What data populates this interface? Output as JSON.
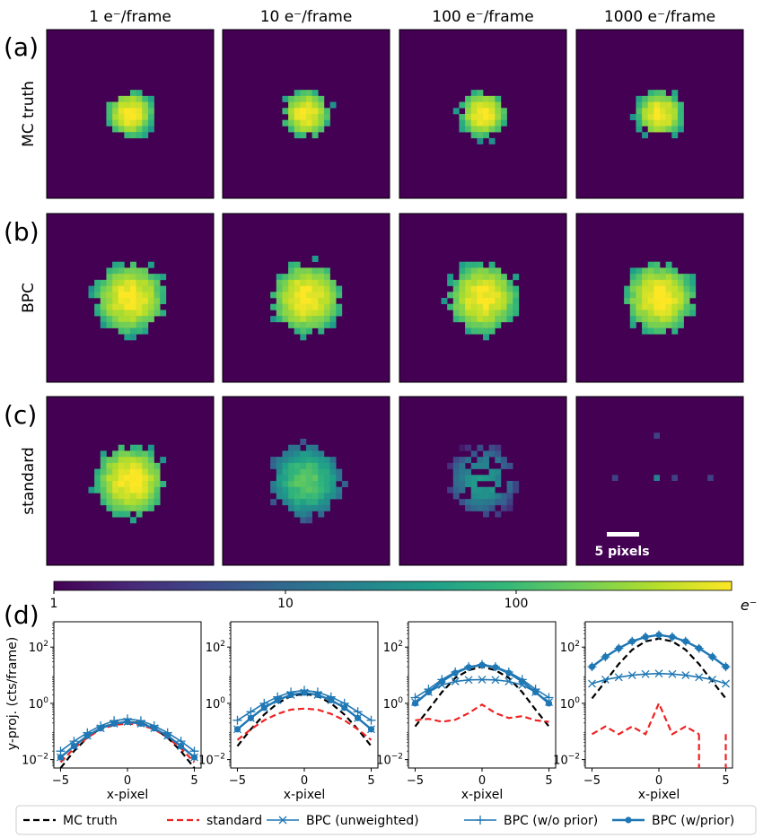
{
  "columns": [
    "1 e⁻/frame",
    "10 e⁻/frame",
    "100 e⁻/frame",
    "1000 e⁻/frame"
  ],
  "rows": [
    {
      "tag": "(a)",
      "label": "MC truth"
    },
    {
      "tag": "(b)",
      "label": "BPC"
    },
    {
      "tag": "(c)",
      "label": "standard"
    }
  ],
  "panel_d": {
    "tag": "(d)",
    "ylabel": "y-proj. (cts/frame)",
    "xlabel": "x-pixel",
    "yticks": [
      {
        "mant": "10",
        "exp": "2"
      },
      {
        "mant": "10",
        "exp": "0"
      },
      {
        "mant": "10",
        "exp": "−2"
      }
    ],
    "xticks": [
      "−5",
      "0",
      "5"
    ]
  },
  "scalebar": {
    "label": "5 pixels"
  },
  "colorbar": {
    "ticks": [
      "1",
      "10",
      "100"
    ],
    "unit": "e⁻",
    "colors": [
      "#440154",
      "#482878",
      "#3e4989",
      "#31688e",
      "#26828e",
      "#1f9e89",
      "#35b779",
      "#6ece58",
      "#b5de2b",
      "#fde725"
    ]
  },
  "colors": {
    "background": "#440154",
    "truth": "#000000",
    "standard": "#ee2222",
    "bpc": "#1f77b4"
  },
  "legend": [
    "MC truth",
    "standard",
    "BPC (unweighted)",
    "BPC (w/o prior)",
    "BPC (w/prior)"
  ],
  "chart_data": {
    "type": "line",
    "yscale": "log",
    "xlim": [
      -5.5,
      5.5
    ],
    "ylim_log10": [
      -2.3,
      2.9
    ],
    "x": [
      -5,
      -4,
      -3,
      -2,
      -1,
      0,
      1,
      2,
      3,
      4,
      5
    ],
    "images": {
      "peak_intensity": [
        [
          700,
          700,
          700,
          700
        ],
        [
          700,
          700,
          700,
          700
        ],
        [
          700,
          130,
          35,
          1
        ]
      ],
      "spot_radius_pixels": [
        [
          4,
          4,
          4,
          4
        ],
        [
          6,
          6,
          6,
          6
        ],
        [
          6,
          6,
          6,
          0
        ]
      ]
    },
    "panels": [
      {
        "flux": "1 e⁻/frame",
        "series": [
          {
            "name": "MC truth",
            "values": [
              0.005,
              0.02,
              0.06,
              0.13,
              0.2,
              0.22,
              0.2,
              0.13,
              0.06,
              0.02,
              0.005
            ]
          },
          {
            "name": "standard",
            "values": [
              0.008,
              0.025,
              0.06,
              0.12,
              0.17,
              0.19,
              0.17,
              0.12,
              0.06,
              0.025,
              0.008
            ]
          },
          {
            "name": "BPC (unweighted)",
            "values": [
              0.012,
              0.03,
              0.07,
              0.13,
              0.19,
              0.22,
              0.19,
              0.13,
              0.07,
              0.03,
              0.012
            ]
          },
          {
            "name": "BPC (w/o prior)",
            "values": [
              0.02,
              0.045,
              0.09,
              0.16,
              0.24,
              0.28,
              0.24,
              0.16,
              0.09,
              0.045,
              0.02
            ]
          },
          {
            "name": "BPC (w/prior)",
            "values": [
              0.012,
              0.03,
              0.07,
              0.13,
              0.19,
              0.22,
              0.19,
              0.13,
              0.07,
              0.03,
              0.012
            ]
          }
        ]
      },
      {
        "flux": "10 e⁻/frame",
        "series": [
          {
            "name": "MC truth",
            "values": [
              0.03,
              0.12,
              0.4,
              1.0,
              1.8,
              2.2,
              1.8,
              1.0,
              0.4,
              0.12,
              0.03
            ]
          },
          {
            "name": "standard",
            "values": [
              0.05,
              0.12,
              0.25,
              0.42,
              0.6,
              0.65,
              0.6,
              0.42,
              0.25,
              0.12,
              0.05
            ]
          },
          {
            "name": "BPC (unweighted)",
            "values": [
              0.12,
              0.3,
              0.7,
              1.3,
              2.0,
              2.4,
              2.0,
              1.3,
              0.7,
              0.3,
              0.12
            ]
          },
          {
            "name": "BPC (w/o prior)",
            "values": [
              0.25,
              0.5,
              1.0,
              1.7,
              2.5,
              2.9,
              2.5,
              1.7,
              1.0,
              0.5,
              0.25
            ]
          },
          {
            "name": "BPC (w/prior)",
            "values": [
              0.12,
              0.3,
              0.7,
              1.3,
              2.0,
              2.4,
              2.0,
              1.3,
              0.7,
              0.3,
              0.12
            ]
          }
        ]
      },
      {
        "flux": "100 e⁻/frame",
        "series": [
          {
            "name": "MC truth",
            "values": [
              0.15,
              0.6,
              2.5,
              8,
              15,
              20,
              15,
              8,
              2.5,
              0.6,
              0.15
            ]
          },
          {
            "name": "standard",
            "values": [
              0.25,
              0.28,
              0.22,
              0.26,
              0.45,
              0.9,
              0.45,
              0.3,
              0.35,
              0.25,
              0.22
            ]
          },
          {
            "name": "BPC (unweighted)",
            "values": [
              1.1,
              2.5,
              4.5,
              6.0,
              6.8,
              7.0,
              6.8,
              6.0,
              4.5,
              2.5,
              1.1
            ]
          },
          {
            "name": "BPC (w/o prior)",
            "values": [
              1.6,
              3.2,
              7,
              13,
              20,
              24,
              20,
              13,
              7,
              3.2,
              1.6
            ]
          },
          {
            "name": "BPC (w/prior)",
            "values": [
              1.0,
              2.5,
              6,
              12,
              19,
              23,
              19,
              12,
              6,
              2.5,
              1.0
            ]
          }
        ]
      },
      {
        "flux": "1000 e⁻/frame",
        "series": [
          {
            "name": "MC truth",
            "values": [
              1.5,
              6,
              25,
              80,
              160,
              200,
              160,
              80,
              25,
              6,
              1.5
            ]
          },
          {
            "name": "standard",
            "values": [
              0.08,
              0.15,
              0.08,
              0.15,
              0.08,
              1.0,
              0.08,
              0.15,
              0.08,
              null,
              0.08
            ]
          },
          {
            "name": "BPC (unweighted)",
            "values": [
              5,
              7,
              8.5,
              10,
              11,
              11.5,
              11,
              10,
              8.5,
              7,
              5
            ]
          },
          {
            "name": "BPC (w/o prior)",
            "values": [
              20,
              45,
              90,
              160,
              230,
              270,
              230,
              160,
              90,
              45,
              20
            ]
          },
          {
            "name": "BPC (w/prior)",
            "values": [
              20,
              45,
              90,
              160,
              230,
              270,
              230,
              160,
              90,
              45,
              20
            ]
          }
        ]
      }
    ]
  }
}
